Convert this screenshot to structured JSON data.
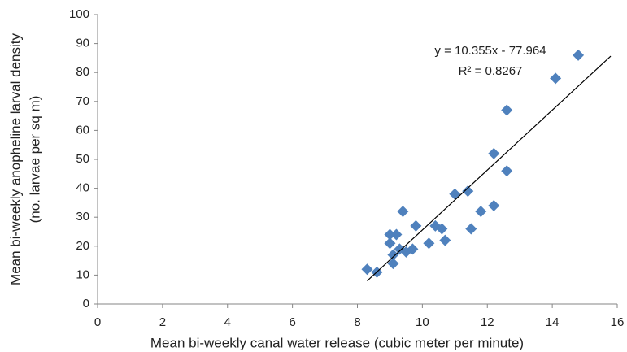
{
  "chart_data": {
    "type": "scatter",
    "xlabel": "Mean bi-weekly canal water release (cubic meter per minute)",
    "ylabel": [
      "Mean bi-weekly anopheline larval density",
      "(no. larvae per sq m)"
    ],
    "xlim": [
      0,
      16
    ],
    "xticks": [
      0,
      2,
      4,
      6,
      8,
      10,
      12,
      14,
      16
    ],
    "ylim": [
      0,
      100
    ],
    "yticks": [
      0,
      10,
      20,
      30,
      40,
      50,
      60,
      70,
      80,
      90,
      100
    ],
    "grid": false,
    "series": [
      {
        "color": "#4f81bd",
        "x": [
          8.3,
          8.6,
          9.0,
          9.0,
          9.1,
          9.1,
          9.2,
          9.3,
          9.4,
          9.5,
          9.7,
          9.8,
          10.2,
          10.4,
          10.6,
          10.7,
          11.0,
          11.4,
          11.5,
          11.8,
          12.2,
          12.2,
          12.6,
          12.6,
          14.1,
          14.8
        ],
        "values": [
          12,
          11,
          24,
          21,
          17,
          14,
          24,
          19,
          32,
          18,
          19,
          27,
          21,
          27,
          26,
          22,
          38,
          39,
          26,
          32,
          52,
          34,
          67,
          46,
          78,
          86
        ]
      }
    ],
    "trendline": {
      "equation": "y = 10.355x - 77.964",
      "r_squared": "R² = 0.8267",
      "slope": 10.355,
      "intercept": -77.964,
      "xlim": [
        8.3,
        15.8
      ]
    }
  }
}
